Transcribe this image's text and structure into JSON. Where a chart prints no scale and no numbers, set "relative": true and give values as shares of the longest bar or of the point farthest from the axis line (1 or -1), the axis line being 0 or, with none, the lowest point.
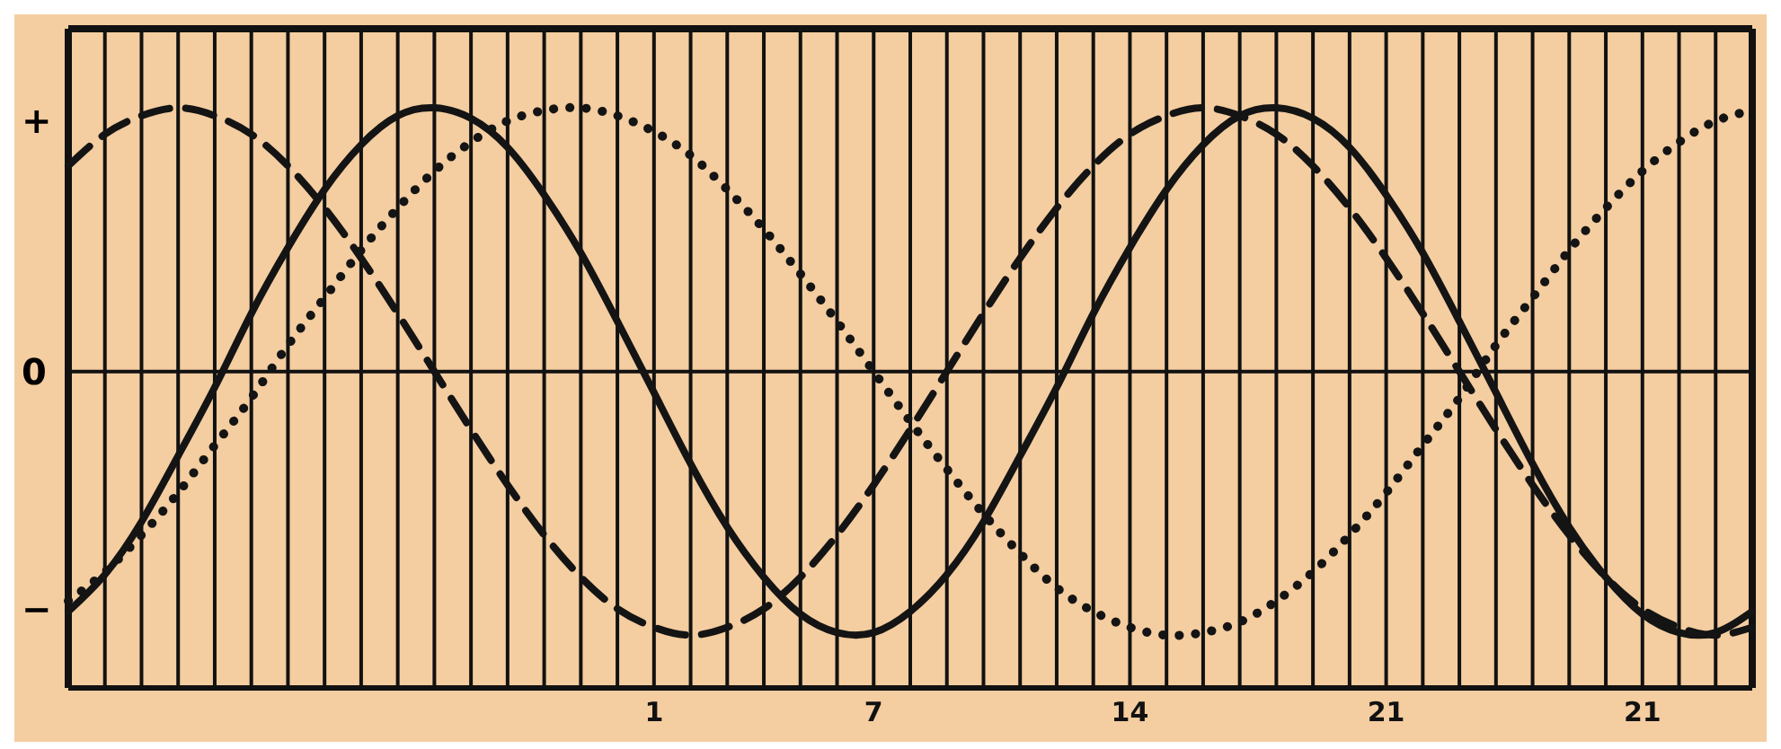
{
  "chart_data": {
    "type": "line",
    "relative": true,
    "grid": "x",
    "marker": "none",
    "annotations": [
      "+",
      "0",
      "−"
    ],
    "categories": [
      null,
      null,
      null,
      null,
      null,
      null,
      null,
      null,
      null,
      null,
      null,
      null,
      null,
      null,
      null,
      null,
      "1",
      null,
      null,
      null,
      null,
      null,
      "7",
      null,
      null,
      null,
      null,
      null,
      null,
      "14",
      null,
      null,
      null,
      null,
      null,
      null,
      "21",
      null,
      null,
      null,
      null,
      null,
      null,
      "21",
      null,
      null,
      null
    ],
    "series": [
      {
        "color": "#141414",
        "line_style": "solid",
        "values": [
          -0.91,
          -0.77,
          -0.57,
          -0.32,
          -0.06,
          0.22,
          0.47,
          0.69,
          0.86,
          0.97,
          1,
          0.96,
          0.85,
          0.67,
          0.45,
          0.19,
          -0.08,
          -0.35,
          -0.59,
          -0.78,
          -0.92,
          -0.99,
          -0.99,
          -0.91,
          -0.77,
          -0.57,
          -0.32,
          -0.06,
          0.22,
          0.47,
          0.69,
          0.86,
          0.97,
          1,
          0.96,
          0.85,
          0.67,
          0.45,
          0.19,
          -0.08,
          -0.35,
          -0.59,
          -0.78,
          -0.92,
          -0.99,
          -0.99,
          -0.91
        ]
      },
      {
        "color": "#141414",
        "line_style": "dashed",
        "values": [
          0.78,
          0.9,
          0.97,
          1,
          0.97,
          0.9,
          0.78,
          0.62,
          0.43,
          0.22,
          0,
          -0.22,
          -0.43,
          -0.62,
          -0.78,
          -0.9,
          -0.97,
          -1,
          -0.97,
          -0.9,
          -0.78,
          -0.62,
          -0.43,
          -0.22,
          0,
          0.22,
          0.43,
          0.62,
          0.78,
          0.9,
          0.97,
          1,
          0.97,
          0.9,
          0.78,
          0.62,
          0.43,
          0.22,
          0,
          -0.22,
          -0.43,
          -0.62,
          -0.78,
          -0.9,
          -0.97,
          -1,
          -0.97
        ]
      },
      {
        "color": "#141414",
        "line_style": "dotted",
        "values": [
          -0.87,
          -0.76,
          -0.62,
          -0.46,
          -0.28,
          -0.1,
          0.1,
          0.28,
          0.46,
          0.62,
          0.76,
          0.87,
          0.95,
          0.99,
          1,
          0.97,
          0.91,
          0.82,
          0.69,
          0.54,
          0.37,
          0.19,
          0,
          -0.19,
          -0.37,
          -0.54,
          -0.69,
          -0.82,
          -0.91,
          -0.97,
          -1,
          -0.99,
          -0.95,
          -0.87,
          -0.76,
          -0.62,
          -0.46,
          -0.28,
          -0.1,
          0.1,
          0.28,
          0.46,
          0.62,
          0.76,
          0.87,
          0.95,
          0.99
        ]
      }
    ]
  }
}
